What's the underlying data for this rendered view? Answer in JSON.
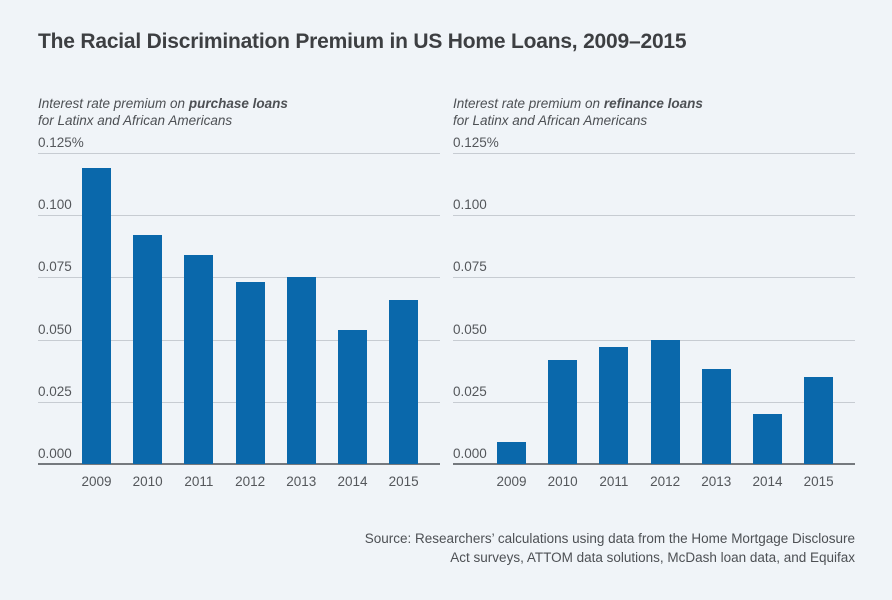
{
  "page": {
    "title": "The Racial Discrimination Premium in US Home Loans, 2009–2015",
    "source_line1": "Source: Researchers’ calculations using data from the Home Mortgage Disclosure",
    "source_line2": "Act surveys, ATTOM data solutions, McDash loan data, and Equifax"
  },
  "colors": {
    "background": "#f0f4f8",
    "bar": "#0a68ab",
    "gridline": "#c7ccd2",
    "axis_line": "#75797e",
    "title_text": "#3d3f42",
    "subtitle_text": "#4d5054",
    "tick_text": "#54575b"
  },
  "chart_data": [
    {
      "type": "bar",
      "subtitle_prefix": "Interest rate premium on ",
      "subtitle_bold": "purchase loans",
      "subtitle_line2": "for Latinx and African Americans",
      "categories": [
        "2009",
        "2010",
        "2011",
        "2012",
        "2013",
        "2014",
        "2015"
      ],
      "values": [
        0.119,
        0.092,
        0.084,
        0.073,
        0.075,
        0.054,
        0.066
      ],
      "unit": "percent",
      "xlabel": "",
      "ylabel": "",
      "ylim": [
        0,
        0.125
      ],
      "grid": true,
      "legend": false,
      "yticks": [
        {
          "value": 0.0,
          "label": "0.000"
        },
        {
          "value": 0.025,
          "label": "0.025"
        },
        {
          "value": 0.05,
          "label": "0.050"
        },
        {
          "value": 0.075,
          "label": "0.075"
        },
        {
          "value": 0.1,
          "label": "0.100"
        },
        {
          "value": 0.125,
          "label": "0.125%"
        }
      ]
    },
    {
      "type": "bar",
      "subtitle_prefix": "Interest rate premium on ",
      "subtitle_bold": "refinance loans",
      "subtitle_line2": "for Latinx and African Americans",
      "categories": [
        "2009",
        "2010",
        "2011",
        "2012",
        "2013",
        "2014",
        "2015"
      ],
      "values": [
        0.009,
        0.042,
        0.047,
        0.05,
        0.038,
        0.02,
        0.035
      ],
      "unit": "percent",
      "xlabel": "",
      "ylabel": "",
      "ylim": [
        0,
        0.125
      ],
      "grid": true,
      "legend": false,
      "yticks": [
        {
          "value": 0.0,
          "label": "0.000"
        },
        {
          "value": 0.025,
          "label": "0.025"
        },
        {
          "value": 0.05,
          "label": "0.050"
        },
        {
          "value": 0.075,
          "label": "0.075"
        },
        {
          "value": 0.1,
          "label": "0.100"
        },
        {
          "value": 0.125,
          "label": "0.125%"
        }
      ]
    }
  ]
}
